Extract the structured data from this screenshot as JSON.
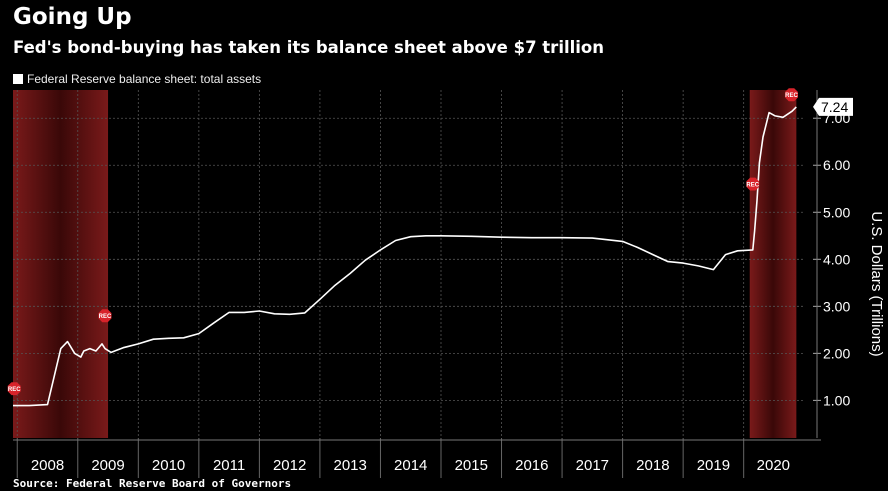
{
  "title": "Going Up",
  "subtitle": "Fed's bond-buying has taken its balance sheet above $7 trillion",
  "source": "Source: Federal Reserve Board of Governors",
  "colors": {
    "background": "#000000",
    "line": "#ffffff",
    "recession_shade": "#7a1a1a",
    "rec_marker": "#d8232a"
  },
  "chart_data": {
    "type": "line",
    "legend_position": "top-left",
    "grid": true,
    "ylabel": "U.S. Dollars (Trillions)",
    "y_axis_side": "right",
    "ylim": [
      0.2,
      7.6
    ],
    "yticks": [
      1.0,
      2.0,
      3.0,
      4.0,
      5.0,
      6.0,
      7.0
    ],
    "ytick_labels": [
      "1.00",
      "2.00",
      "3.00",
      "4.00",
      "5.00",
      "6.00",
      "7.00"
    ],
    "x_categories": [
      "2008",
      "2009",
      "2010",
      "2011",
      "2012",
      "2013",
      "2014",
      "2015",
      "2016",
      "2017",
      "2018",
      "2019",
      "2020"
    ],
    "xlim": [
      2007.93,
      2020.98
    ],
    "last_value_label": "7.24",
    "recession_periods": [
      {
        "start": 2007.93,
        "end": 2009.5,
        "marker_label": "REC"
      },
      {
        "start": 2020.1,
        "end": 2020.87,
        "marker_label": "REC"
      }
    ],
    "series": [
      {
        "name": "Federal Reserve balance sheet: total assets",
        "x": [
          2007.93,
          2008.2,
          2008.5,
          2008.72,
          2008.83,
          2008.95,
          2009.05,
          2009.1,
          2009.2,
          2009.3,
          2009.4,
          2009.45,
          2009.55,
          2009.75,
          2010.0,
          2010.25,
          2010.5,
          2010.75,
          2011.0,
          2011.25,
          2011.5,
          2011.75,
          2012.0,
          2012.25,
          2012.5,
          2012.75,
          2013.0,
          2013.25,
          2013.5,
          2013.75,
          2014.0,
          2014.25,
          2014.5,
          2014.75,
          2015.0,
          2015.5,
          2016.0,
          2016.5,
          2017.0,
          2017.5,
          2018.0,
          2018.25,
          2018.5,
          2018.75,
          2019.0,
          2019.25,
          2019.5,
          2019.7,
          2019.9,
          2020.15,
          2020.18,
          2020.22,
          2020.26,
          2020.32,
          2020.42,
          2020.52,
          2020.65,
          2020.8,
          2020.87
        ],
        "values": [
          0.89,
          0.89,
          0.91,
          2.1,
          2.25,
          2.0,
          1.92,
          2.05,
          2.1,
          2.05,
          2.2,
          2.1,
          2.02,
          2.12,
          2.2,
          2.3,
          2.32,
          2.33,
          2.42,
          2.65,
          2.87,
          2.87,
          2.9,
          2.84,
          2.83,
          2.86,
          3.15,
          3.45,
          3.7,
          3.98,
          4.2,
          4.4,
          4.48,
          4.5,
          4.5,
          4.49,
          4.47,
          4.46,
          4.46,
          4.45,
          4.38,
          4.25,
          4.1,
          3.95,
          3.92,
          3.86,
          3.78,
          4.1,
          4.18,
          4.2,
          4.6,
          5.25,
          6.05,
          6.6,
          7.12,
          7.05,
          7.02,
          7.15,
          7.24
        ]
      }
    ]
  }
}
